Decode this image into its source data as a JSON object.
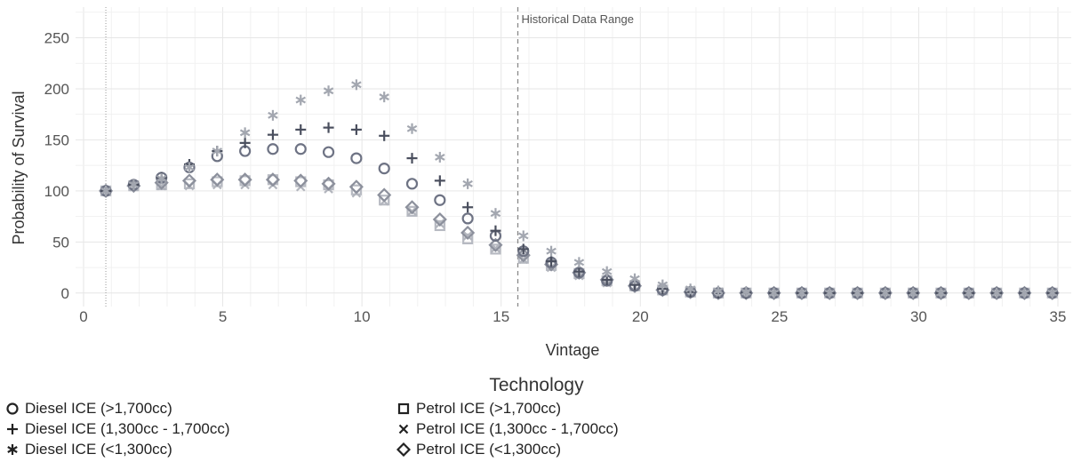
{
  "chart_data": {
    "type": "scatter",
    "xlabel": "Vintage",
    "ylabel": "Probability of Survival",
    "xlim": [
      0,
      35
    ],
    "ylim": [
      -8,
      280
    ],
    "xticks": [
      0,
      5,
      10,
      15,
      20,
      25,
      30,
      35
    ],
    "yticks": [
      0,
      50,
      100,
      150,
      200,
      250
    ],
    "grid": true,
    "annotation": {
      "text": "Historical Data Range",
      "x": 15.6
    },
    "vline_dotted_x": 0.8,
    "legend_title": "Technology",
    "legend_position": "bottom",
    "series": [
      {
        "name": "Diesel ICE (>1,700cc)",
        "marker": "circle",
        "color": "#6e7384",
        "x": [
          0.8,
          1.8,
          2.8,
          3.8,
          4.8,
          5.8,
          6.8,
          7.8,
          8.8,
          9.8,
          10.8,
          11.8,
          12.8,
          13.8,
          14.8,
          15.8,
          16.8,
          17.8,
          18.8,
          19.8,
          20.8,
          21.8,
          22.8,
          23.8,
          24.8,
          25.8,
          26.8,
          27.8,
          28.8,
          29.8,
          30.8,
          31.8,
          32.8,
          33.8,
          34.8
        ],
        "y": [
          100,
          106,
          113,
          123,
          134,
          139,
          141,
          141,
          138,
          132,
          122,
          107,
          91,
          73,
          56,
          41,
          30,
          20,
          12,
          7,
          3,
          1,
          0,
          0,
          0,
          0,
          0,
          0,
          0,
          0,
          0,
          0,
          0,
          0,
          0
        ]
      },
      {
        "name": "Diesel ICE (1,300cc - 1,700cc)",
        "marker": "plus",
        "color": "#4a4f5e",
        "x": [
          0.8,
          1.8,
          2.8,
          3.8,
          4.8,
          5.8,
          6.8,
          7.8,
          8.8,
          9.8,
          10.8,
          11.8,
          12.8,
          13.8,
          14.8,
          15.8,
          16.8,
          17.8,
          18.8,
          19.8,
          20.8,
          21.8,
          22.8,
          23.8,
          24.8,
          25.8,
          26.8,
          27.8,
          28.8,
          29.8,
          30.8,
          31.8,
          32.8,
          33.8,
          34.8
        ],
        "y": [
          100,
          106,
          113,
          126,
          139,
          147,
          155,
          160,
          162,
          160,
          154,
          132,
          110,
          84,
          61,
          43,
          31,
          21,
          13,
          8,
          4,
          1,
          0,
          0,
          0,
          0,
          0,
          0,
          0,
          0,
          0,
          0,
          0,
          0,
          0
        ]
      },
      {
        "name": "Diesel ICE (<1,300cc)",
        "marker": "asterisk",
        "color": "#a3a7b0",
        "x": [
          0.8,
          1.8,
          2.8,
          3.8,
          4.8,
          5.8,
          6.8,
          7.8,
          8.8,
          9.8,
          10.8,
          11.8,
          12.8,
          13.8,
          14.8,
          15.8,
          16.8,
          17.8,
          18.8,
          19.8,
          20.8,
          21.8,
          22.8,
          23.8,
          24.8,
          25.8,
          26.8,
          27.8,
          28.8,
          29.8,
          30.8,
          31.8,
          32.8,
          33.8,
          34.8
        ],
        "y": [
          100,
          106,
          112,
          123,
          139,
          157,
          174,
          189,
          198,
          204,
          192,
          161,
          133,
          107,
          78,
          56,
          41,
          30,
          21,
          14,
          8,
          4,
          2,
          1,
          0,
          0,
          0,
          0,
          0,
          0,
          0,
          0,
          0,
          0,
          0
        ]
      },
      {
        "name": "Petrol ICE (>1,700cc)",
        "marker": "square",
        "color": "#b7bac2",
        "x": [
          0.8,
          1.8,
          2.8,
          3.8,
          4.8,
          5.8,
          6.8,
          7.8,
          8.8,
          9.8,
          10.8,
          11.8,
          12.8,
          13.8,
          14.8,
          15.8,
          16.8,
          17.8,
          18.8,
          19.8,
          20.8,
          21.8,
          22.8,
          23.8,
          24.8,
          25.8,
          26.8,
          27.8,
          28.8,
          29.8,
          30.8,
          31.8,
          32.8,
          33.8,
          34.8
        ],
        "y": [
          100,
          105,
          106,
          107,
          109,
          110,
          111,
          109,
          106,
          101,
          91,
          80,
          66,
          53,
          43,
          34,
          27,
          19,
          12,
          7,
          3,
          1,
          0,
          0,
          0,
          0,
          0,
          0,
          0,
          0,
          0,
          0,
          0,
          0,
          0
        ]
      },
      {
        "name": "Petrol ICE (1,300cc - 1,700cc)",
        "marker": "cross",
        "color": "#b2b5bd",
        "x": [
          0.8,
          1.8,
          2.8,
          3.8,
          4.8,
          5.8,
          6.8,
          7.8,
          8.8,
          9.8,
          10.8,
          11.8,
          12.8,
          13.8,
          14.8,
          15.8,
          16.8,
          17.8,
          18.8,
          19.8,
          20.8,
          21.8,
          22.8,
          23.8,
          24.8,
          25.8,
          26.8,
          27.8,
          28.8,
          29.8,
          30.8,
          31.8,
          32.8,
          33.8,
          34.8
        ],
        "y": [
          100,
          104,
          105,
          105,
          106,
          106,
          106,
          104,
          102,
          98,
          90,
          80,
          68,
          56,
          44,
          33,
          25,
          17,
          10,
          6,
          3,
          1,
          0,
          0,
          0,
          0,
          0,
          0,
          0,
          0,
          0,
          0,
          0,
          0,
          0
        ]
      },
      {
        "name": "Petrol ICE (<1,300cc)",
        "marker": "diamond",
        "color": "#8c909c",
        "x": [
          0.8,
          1.8,
          2.8,
          3.8,
          4.8,
          5.8,
          6.8,
          7.8,
          8.8,
          9.8,
          10.8,
          11.8,
          12.8,
          13.8,
          14.8,
          15.8,
          16.8,
          17.8,
          18.8,
          19.8,
          20.8,
          21.8,
          22.8,
          23.8,
          24.8,
          25.8,
          26.8,
          27.8,
          28.8,
          29.8,
          30.8,
          31.8,
          32.8,
          33.8,
          34.8
        ],
        "y": [
          100,
          105,
          108,
          110,
          111,
          111,
          111,
          110,
          107,
          104,
          96,
          84,
          72,
          59,
          47,
          37,
          28,
          20,
          13,
          7,
          3,
          1,
          0,
          0,
          0,
          0,
          0,
          0,
          0,
          0,
          0,
          0,
          0,
          0,
          0
        ]
      }
    ]
  },
  "legend": {
    "title": "Technology",
    "left": [
      {
        "marker": "circle",
        "label": "Diesel ICE (>1,700cc)"
      },
      {
        "marker": "plus",
        "label": "Diesel ICE (1,300cc - 1,700cc)"
      },
      {
        "marker": "asterisk",
        "label": "Diesel ICE (<1,300cc)"
      }
    ],
    "right": [
      {
        "marker": "square",
        "label": "Petrol ICE (>1,700cc)"
      },
      {
        "marker": "cross",
        "label": "Petrol ICE (1,300cc - 1,700cc)"
      },
      {
        "marker": "diamond",
        "label": "Petrol ICE (<1,300cc)"
      }
    ]
  }
}
